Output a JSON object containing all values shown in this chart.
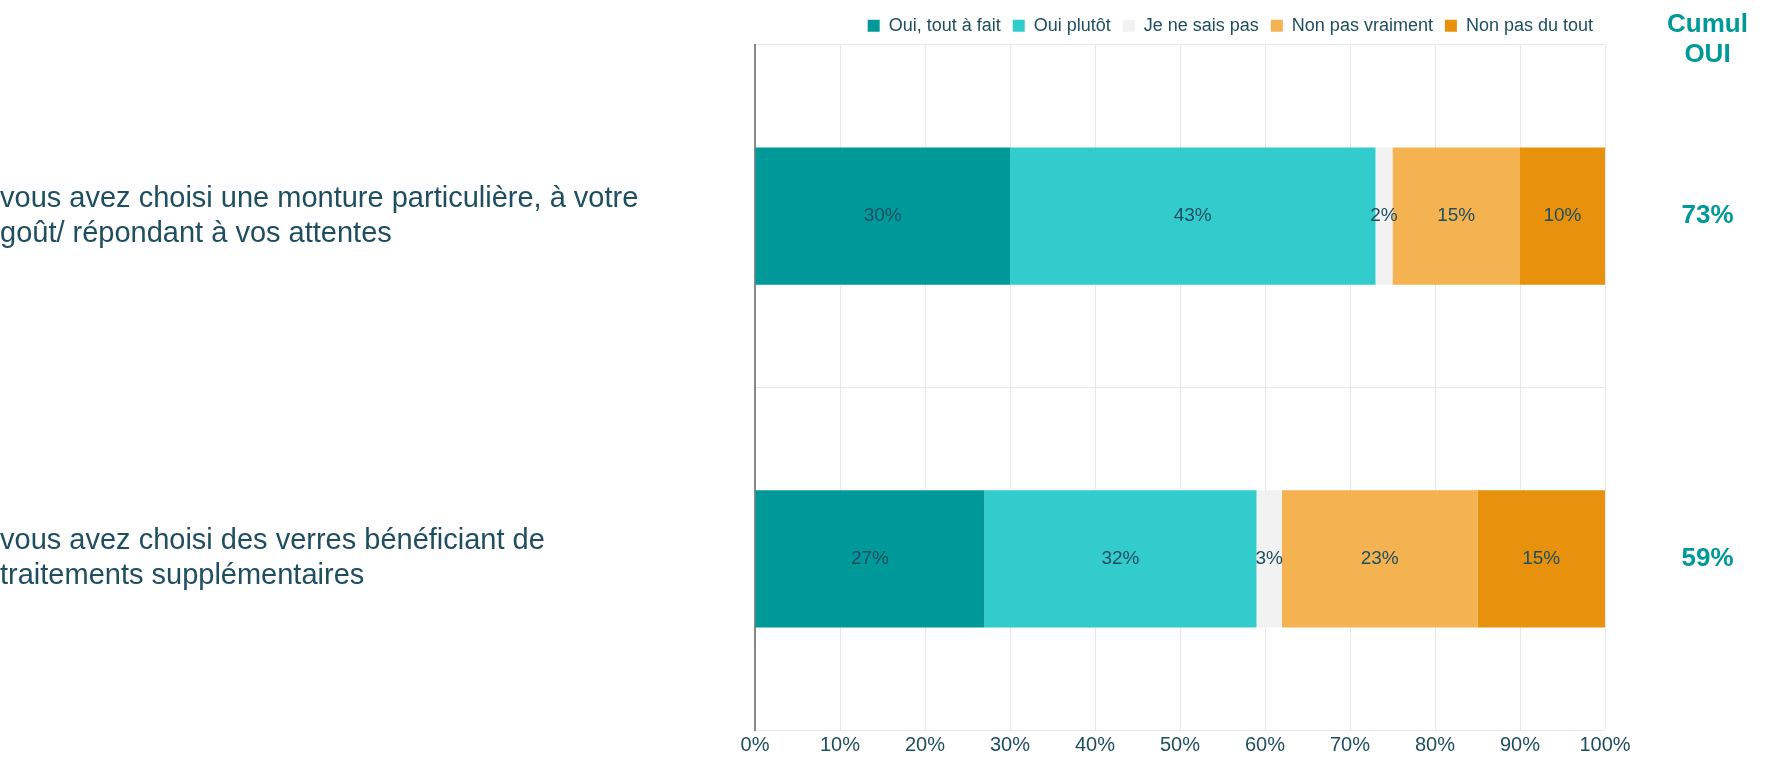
{
  "chart_data": {
    "type": "bar",
    "orientation": "horizontal",
    "stacked": true,
    "categories": [
      "vous avez choisi une monture particulière, à votre goût/ répondant à vos attentes",
      "vous avez choisi des verres bénéficiant de traitements supplémentaires"
    ],
    "series": [
      {
        "name": "Oui, tout à fait",
        "color": "#009999",
        "values": [
          30,
          27
        ],
        "value_labels": [
          "30%",
          "27%"
        ]
      },
      {
        "name": "Oui plutôt",
        "color": "#33cccc",
        "values": [
          43,
          32
        ],
        "value_labels": [
          "43%",
          "32%"
        ]
      },
      {
        "name": "Je ne sais pas",
        "color": "#f2f2f2",
        "values": [
          2,
          3
        ],
        "value_labels": [
          "2%",
          "3%"
        ]
      },
      {
        "name": "Non pas vraiment",
        "color": "#f4b350",
        "values": [
          15,
          23
        ],
        "value_labels": [
          "15%",
          "23%"
        ]
      },
      {
        "name": "Non pas du tout",
        "color": "#e8910c",
        "values": [
          10,
          15
        ],
        "value_labels": [
          "10%",
          "15%"
        ]
      }
    ],
    "xlim": [
      0,
      100
    ],
    "xticks": [
      {
        "value": 0,
        "label": "0%"
      },
      {
        "value": 10,
        "label": "10%"
      },
      {
        "value": 20,
        "label": "20%"
      },
      {
        "value": 30,
        "label": "30%"
      },
      {
        "value": 40,
        "label": "40%"
      },
      {
        "value": 50,
        "label": "50%"
      },
      {
        "value": 60,
        "label": "60%"
      },
      {
        "value": 70,
        "label": "70%"
      },
      {
        "value": 80,
        "label": "80%"
      },
      {
        "value": 90,
        "label": "90%"
      },
      {
        "value": 100,
        "label": "100%"
      }
    ],
    "annotations": [
      "Cumul OUI",
      "73%",
      "59%"
    ],
    "grid": true,
    "legend": "top"
  }
}
